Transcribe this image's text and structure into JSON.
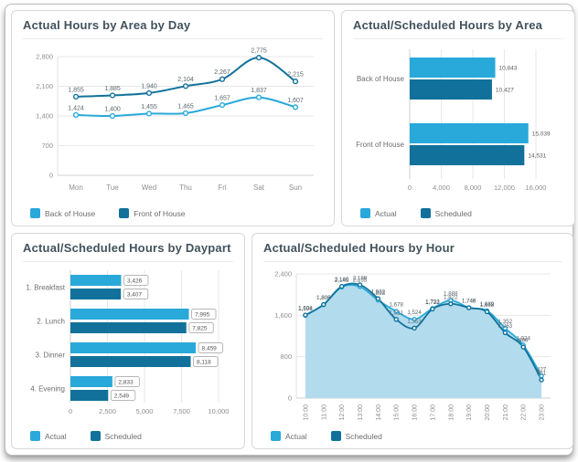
{
  "colors": {
    "actual_light_blue": "#29a9da",
    "scheduled_dark_teal": "#11719a",
    "area_fill": "#b2dcee",
    "title_text": "#42525c",
    "tick_text": "#8f8f8f",
    "value_label_text": "#5a666d",
    "grid_line": "#e7e7e7",
    "card_border": "#d8d8d8"
  },
  "chart_data": [
    {
      "type": "line",
      "title": "Actual Hours by Area by Day",
      "categories": [
        "Mon",
        "Tue",
        "Wed",
        "Thu",
        "Fri",
        "Sat",
        "Sun"
      ],
      "series": [
        {
          "name": "Back of House",
          "color": "#29a9da",
          "values": [
            1424,
            1400,
            1455,
            1465,
            1657,
            1837,
            1607
          ],
          "labels": [
            "1,424",
            "1,400",
            "1,455",
            "1,465",
            "1,657",
            "1,837",
            "1,607"
          ]
        },
        {
          "name": "Front of House",
          "color": "#11719a",
          "values": [
            1855,
            1885,
            1940,
            2104,
            2267,
            2775,
            2215
          ],
          "labels": [
            "1,855",
            "1,885",
            "1,940",
            "2,104",
            "2,267",
            "2,775",
            "2,215"
          ]
        }
      ],
      "ylim": [
        0,
        2800
      ],
      "y_ticks": [
        0,
        700,
        1400,
        2100,
        2800
      ],
      "y_tick_labels": [
        "0",
        "700",
        "1,400",
        "2,100",
        "2,800"
      ],
      "grid": "horizontal",
      "legend_position": "bottom-left"
    },
    {
      "type": "bar",
      "orientation": "horizontal",
      "title": "Actual/Scheduled Hours by Area",
      "categories": [
        "Back of House",
        "Front of House"
      ],
      "series": [
        {
          "name": "Actual",
          "color": "#29a9da",
          "values": [
            10843,
            15039
          ],
          "labels": [
            "10,843",
            "15,039"
          ]
        },
        {
          "name": "Scheduled",
          "color": "#11719a",
          "values": [
            10427,
            14531
          ],
          "labels": [
            "10,427",
            "14,531"
          ]
        }
      ],
      "xlim": [
        0,
        16000
      ],
      "x_ticks": [
        0,
        4000,
        8000,
        12000,
        16000
      ],
      "x_tick_labels": [
        "0",
        "4,000",
        "8,000",
        "12,000",
        "16,000"
      ],
      "value_labels_boxed": false,
      "legend_position": "bottom-left"
    },
    {
      "type": "bar",
      "orientation": "horizontal",
      "title": "Actual/Scheduled Hours by Daypart",
      "categories": [
        "1. Breakfast",
        "2. Lunch",
        "3. Dinner",
        "4. Evening"
      ],
      "series": [
        {
          "name": "Actual",
          "color": "#29a9da",
          "values": [
            3426,
            7995,
            8459,
            2833
          ],
          "labels": [
            "3,426",
            "7,995",
            "8,459",
            "2,833"
          ]
        },
        {
          "name": "Scheduled",
          "color": "#11719a",
          "values": [
            3407,
            7825,
            8118,
            2549
          ],
          "labels": [
            "3,407",
            "7,825",
            "8,118",
            "2,549"
          ]
        }
      ],
      "xlim": [
        0,
        10000
      ],
      "x_ticks": [
        0,
        2500,
        5000,
        7500,
        10000
      ],
      "x_tick_labels": [
        "0",
        "2,500",
        "5,000",
        "7,500",
        "10,000"
      ],
      "value_labels_boxed": true,
      "legend_position": "bottom-left"
    },
    {
      "type": "area",
      "title": "Actual/Scheduled Hours by Hour",
      "categories": [
        "10:00",
        "11:00",
        "12:00",
        "13:00",
        "14:00",
        "15:00",
        "16:00",
        "17:00",
        "18:00",
        "19:00",
        "20:00",
        "21:00",
        "22:00",
        "23:00"
      ],
      "series": [
        {
          "name": "Actual",
          "color": "#29a9da",
          "fill": "#b2dcee",
          "values": [
            1598,
            1805,
            2145,
            2155,
            1893,
            1678,
            1524,
            1733,
            1888,
            1748,
            1689,
            1352,
            1024,
            427
          ],
          "labels": [
            "1,598",
            "1,805",
            "2,145",
            "2,155",
            "1,893",
            "1,678",
            "1,524",
            "1,733",
            "1,888",
            "1,748",
            "1,689",
            "1,352",
            "1,024",
            "427"
          ]
        },
        {
          "name": "Scheduled",
          "color": "#11719a",
          "values": [
            1604,
            1808,
            2160,
            2189,
            1922,
            1521,
            1353,
            1722,
            1822,
            1746,
            1668,
            1263,
            986,
            351
          ],
          "labels": [
            "1,604",
            "1,808",
            "2,160",
            "2,189",
            "1,922",
            "1,521",
            "1,353",
            "1,722",
            "1,822",
            "1,746",
            "1,668",
            "1,263",
            "986",
            "351"
          ]
        }
      ],
      "ylim": [
        0,
        2400
      ],
      "y_ticks": [
        0,
        800,
        1600,
        2400
      ],
      "y_tick_labels": [
        "0",
        "800",
        "1,600",
        "2,400"
      ],
      "x_labels_vertical": true,
      "grid": "horizontal",
      "legend_position": "bottom-left"
    }
  ]
}
